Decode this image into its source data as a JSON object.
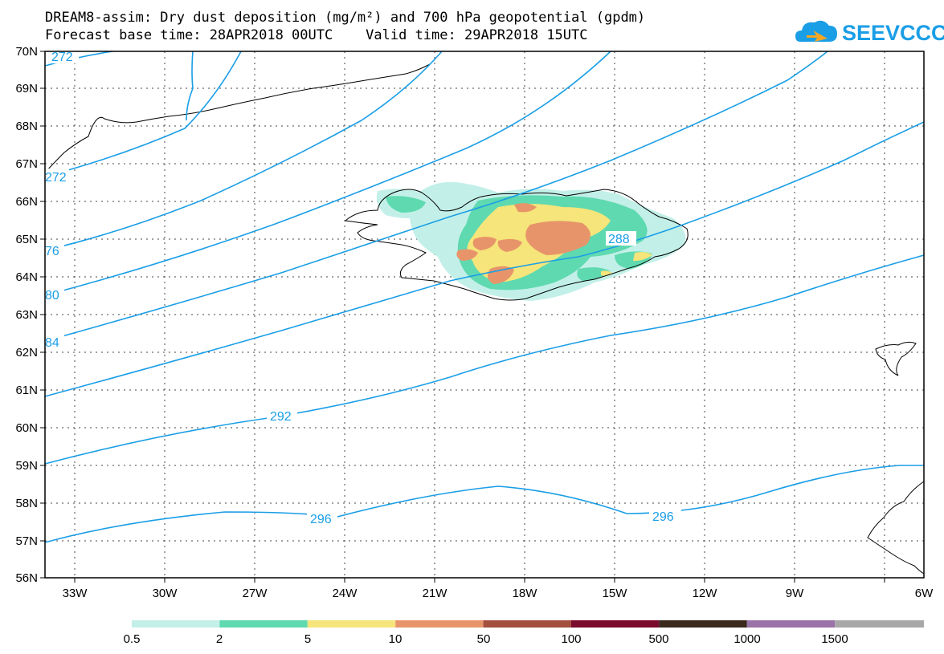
{
  "title": {
    "line1": "DREAM8-assim: Dry dust deposition (mg/m²) and 700 hPa geopotential (gpdm)",
    "line2": "Forecast base time: 28APR2018 00UTC    Valid time: 29APR2018 15UTC"
  },
  "logo": {
    "text": "SEEVCCC",
    "icon": "cloud-icon",
    "color": "#1a9ee6"
  },
  "map": {
    "lat_labels": [
      "70N",
      "69N",
      "68N",
      "67N",
      "66N",
      "65N",
      "64N",
      "63N",
      "62N",
      "61N",
      "60N",
      "59N",
      "58N",
      "57N",
      "56N"
    ],
    "lon_labels": [
      "33W",
      "30W",
      "27W",
      "24W",
      "21W",
      "18W",
      "15W",
      "12W",
      "9W",
      "6W"
    ],
    "isoline_color": "#1a9ee6",
    "isolines": [
      {
        "value": "272",
        "label": "272"
      },
      {
        "value": "276",
        "label": "76"
      },
      {
        "value": "280",
        "label": "80"
      },
      {
        "value": "284",
        "label": "84"
      },
      {
        "value": "288",
        "label": "288"
      },
      {
        "value": "292",
        "label": "292"
      },
      {
        "value": "296",
        "label": "296"
      }
    ],
    "top_partial_label": "272",
    "extra_label_296": "296"
  },
  "colorbar": {
    "labels": [
      "0.5",
      "2",
      "5",
      "10",
      "50",
      "100",
      "500",
      "1000",
      "1500"
    ],
    "colors": [
      "#c2f0e8",
      "#5fd9b0",
      "#f5e57a",
      "#e8946a",
      "#a34f3e",
      "#7a0a2e",
      "#3a2a1c",
      "#9a74a8",
      "#a8a8a8"
    ]
  }
}
